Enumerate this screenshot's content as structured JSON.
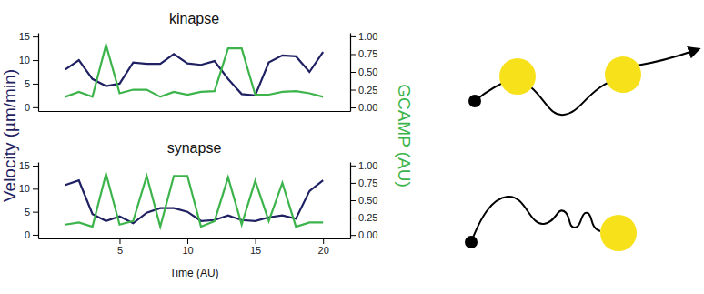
{
  "chart_data": [
    {
      "type": "line",
      "title": "kinapse",
      "y_label": "Velocity (µm/min)",
      "y2_label": "GCAMP (AU)",
      "x": [
        1,
        2,
        3,
        4,
        5,
        6,
        7,
        8,
        9,
        10,
        11,
        12,
        13,
        14,
        15,
        16,
        17,
        18,
        19,
        20
      ],
      "xlim": [
        -1,
        22
      ],
      "ylim": [
        -0.8,
        15.8
      ],
      "yticks": [
        0,
        5,
        10,
        15
      ],
      "y2lim": [
        -0.05,
        1.05
      ],
      "y2ticks": [
        {
          "value": 0,
          "label": "0.00"
        },
        {
          "value": 0.25,
          "label": "0.25"
        },
        {
          "value": 0.5,
          "label": "0.50"
        },
        {
          "value": 0.75,
          "label": "0.75"
        },
        {
          "value": 1,
          "label": "1.00"
        }
      ],
      "series": [
        {
          "color": "#1f2163",
          "axis": "y",
          "values": [
            8,
            10,
            6,
            4.5,
            5,
            9.5,
            9.2,
            9.2,
            11.3,
            9.3,
            9,
            9.8,
            6,
            2.8,
            2.5,
            9.5,
            11,
            10.8,
            7.5,
            11.7
          ]
        },
        {
          "color": "#3cb44b",
          "axis": "y2",
          "values": [
            0.15,
            0.22,
            0.15,
            0.88,
            0.2,
            0.25,
            0.25,
            0.15,
            0.22,
            0.18,
            0.22,
            0.23,
            0.83,
            0.83,
            0.18,
            0.18,
            0.22,
            0.23,
            0.2,
            0.15
          ]
        }
      ]
    },
    {
      "type": "line",
      "title": "synapse",
      "x_label": "Time (AU)",
      "x": [
        1,
        2,
        3,
        4,
        5,
        6,
        7,
        8,
        9,
        10,
        11,
        12,
        13,
        14,
        15,
        16,
        17,
        18,
        19,
        20
      ],
      "xlim": [
        -1,
        22
      ],
      "xticks": [
        5,
        10,
        15,
        20
      ],
      "ylim": [
        -0.8,
        15.8
      ],
      "yticks": [
        0,
        5,
        10,
        15
      ],
      "y2lim": [
        -0.05,
        1.05
      ],
      "y2ticks": [
        {
          "value": 0,
          "label": "0.00"
        },
        {
          "value": 0.25,
          "label": "0.25"
        },
        {
          "value": 0.5,
          "label": "0.50"
        },
        {
          "value": 0.75,
          "label": "0.75"
        },
        {
          "value": 1,
          "label": "1.00"
        }
      ],
      "series": [
        {
          "color": "#1f2163",
          "axis": "y",
          "values": [
            10.8,
            11.8,
            4.5,
            3,
            4,
            2.5,
            4.8,
            5.8,
            5.8,
            5,
            3,
            3.2,
            4.2,
            3.2,
            3,
            3.8,
            4.2,
            3.5,
            9.5,
            11.8
          ]
        },
        {
          "color": "#3cb44b",
          "axis": "y2",
          "values": [
            0.15,
            0.18,
            0.12,
            0.88,
            0.15,
            0.2,
            0.85,
            0.12,
            0.85,
            0.85,
            0.12,
            0.2,
            0.83,
            0.15,
            0.78,
            0.2,
            0.75,
            0.12,
            0.18,
            0.18
          ]
        }
      ]
    }
  ]
}
